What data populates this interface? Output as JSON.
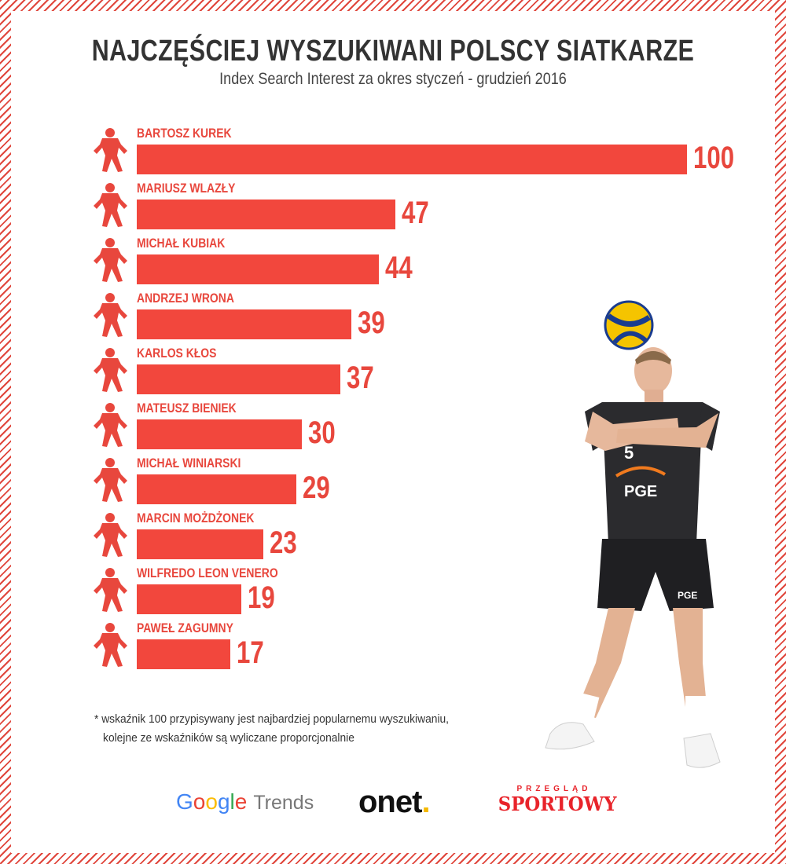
{
  "title": "NAJCZĘŚCIEJ WYSZUKIWANI POLSCY SIATKARZE",
  "subtitle": "Index Search Interest za okres styczeń - grudzień 2016",
  "chart_data": {
    "type": "bar",
    "orientation": "horizontal",
    "title": "NAJCZĘŚCIEJ WYSZUKIWANI POLSCY SIATKARZE",
    "subtitle": "Index Search Interest za okres styczeń - grudzień 2016",
    "xlabel": "",
    "ylabel": "",
    "xlim": [
      0,
      100
    ],
    "grid": false,
    "categories": [
      "BARTOSZ KUREK",
      "MARIUSZ WLAZŁY",
      "MICHAŁ KUBIAK",
      "ANDRZEJ WRONA",
      "KARLOS KŁOS",
      "MATEUSZ BIENIEK",
      "MICHAŁ WINIARSKI",
      "MARCIN MOŻDŻONEK",
      "WILFREDO LEON VENERO",
      "PAWEŁ ZAGUMNY"
    ],
    "values": [
      100,
      47,
      44,
      39,
      37,
      30,
      29,
      23,
      19,
      17
    ],
    "bar_color": "#f2473d",
    "label_color": "#e8473d"
  },
  "footnote": {
    "line1": "* wskaźnik 100 przypisywany jest najbardziej popularnemu wyszukiwaniu,",
    "line2": "kolejne ze wskaźników są wyliczane proporcjonalnie"
  },
  "logos": {
    "google": {
      "g1": "G",
      "o1": "o",
      "o2": "o",
      "g2": "g",
      "l": "l",
      "e": "e",
      "trends": "Trends"
    },
    "onet": {
      "text": "onet",
      "dot": "."
    },
    "przeglad_sportowy": {
      "top": "PRZEGLĄD",
      "bottom": "SPORTOWY"
    }
  },
  "colors": {
    "accent": "#f2473d",
    "title": "#333333",
    "border_hatch": "#e0463c"
  },
  "icons": {
    "row_icon": "volleyball-player-silhouette-icon",
    "photo": "volleyball-player-photo"
  }
}
